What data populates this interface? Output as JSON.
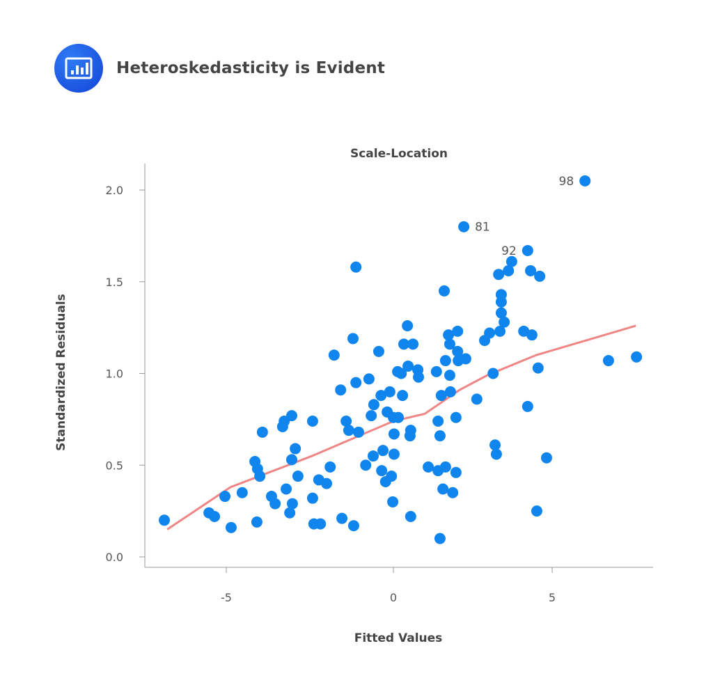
{
  "header": {
    "title": "Heteroskedasticity is Evident",
    "icon": "bar-chart-icon"
  },
  "chart_data": {
    "type": "scatter",
    "title": "Scale-Location",
    "xlabel": "Fitted Values",
    "ylabel": "Standardized Residuals",
    "xlim": [
      -7.5,
      8
    ],
    "ylim": [
      -0.05,
      2.15
    ],
    "xticks": [
      "-5",
      "0",
      "5"
    ],
    "xtick_values": [
      -5,
      0,
      5
    ],
    "yticks": [
      "0.0",
      "0.5",
      "1.0",
      "1.5",
      "2.0"
    ],
    "ytick_values": [
      0,
      0.5,
      1.0,
      1.5,
      2.0
    ],
    "grid": false,
    "point_color": "#1185ee",
    "line_color": "#f08585",
    "points": [
      [
        -7.03,
        0.2
      ],
      [
        -5.66,
        0.24
      ],
      [
        -5.49,
        0.22
      ],
      [
        -5.17,
        0.33
      ],
      [
        -4.98,
        0.16
      ],
      [
        -4.64,
        0.35
      ],
      [
        -4.25,
        0.52
      ],
      [
        -4.19,
        0.19
      ],
      [
        -4.17,
        0.48
      ],
      [
        -4.1,
        0.44
      ],
      [
        -4.02,
        0.68
      ],
      [
        -3.74,
        0.33
      ],
      [
        -3.63,
        0.29
      ],
      [
        -3.4,
        0.71
      ],
      [
        -3.35,
        0.74
      ],
      [
        -3.29,
        0.37
      ],
      [
        -3.18,
        0.24
      ],
      [
        -3.12,
        0.53
      ],
      [
        -3.12,
        0.77
      ],
      [
        -3.1,
        0.29
      ],
      [
        -3.01,
        0.59
      ],
      [
        -2.93,
        0.44
      ],
      [
        -2.48,
        0.74
      ],
      [
        -2.48,
        0.32
      ],
      [
        -2.44,
        0.18
      ],
      [
        -2.29,
        0.42
      ],
      [
        -2.24,
        0.18
      ],
      [
        -2.05,
        0.4
      ],
      [
        -1.94,
        0.49
      ],
      [
        -1.82,
        1.1
      ],
      [
        -1.62,
        0.91
      ],
      [
        -1.58,
        0.21
      ],
      [
        -1.45,
        0.74
      ],
      [
        -1.37,
        0.69
      ],
      [
        -1.22,
        0.17
      ],
      [
        -1.24,
        1.19
      ],
      [
        -1.15,
        0.95
      ],
      [
        -1.07,
        0.68
      ],
      [
        -1.15,
        1.58
      ],
      [
        -0.85,
        0.5
      ],
      [
        -0.75,
        0.97
      ],
      [
        -0.68,
        0.77
      ],
      [
        -0.62,
        0.55
      ],
      [
        -0.6,
        0.83
      ],
      [
        -0.45,
        1.12
      ],
      [
        -0.38,
        0.88
      ],
      [
        -0.36,
        0.47
      ],
      [
        -0.32,
        0.58
      ],
      [
        -0.24,
        0.41
      ],
      [
        -0.19,
        0.79
      ],
      [
        -0.11,
        0.9
      ],
      [
        -0.06,
        0.44
      ],
      [
        0.0,
        0.76
      ],
      [
        -0.02,
        0.3
      ],
      [
        0.02,
        0.56
      ],
      [
        0.02,
        0.67
      ],
      [
        0.15,
        0.76
      ],
      [
        0.13,
        1.01
      ],
      [
        0.24,
        1.0
      ],
      [
        0.28,
        0.88
      ],
      [
        0.32,
        1.16
      ],
      [
        0.43,
        1.26
      ],
      [
        0.45,
        1.04
      ],
      [
        0.53,
        0.22
      ],
      [
        0.53,
        0.69
      ],
      [
        0.51,
        0.66
      ],
      [
        0.6,
        1.16
      ],
      [
        0.75,
        1.02
      ],
      [
        0.77,
        0.98
      ],
      [
        1.07,
        0.49
      ],
      [
        1.32,
        1.01
      ],
      [
        1.37,
        0.74
      ],
      [
        1.37,
        0.47
      ],
      [
        1.43,
        0.1
      ],
      [
        1.43,
        0.66
      ],
      [
        1.47,
        0.88
      ],
      [
        1.52,
        0.37
      ],
      [
        1.56,
        1.45
      ],
      [
        1.6,
        1.07
      ],
      [
        1.6,
        0.49
      ],
      [
        1.69,
        1.21
      ],
      [
        1.73,
        0.99
      ],
      [
        1.73,
        1.16
      ],
      [
        1.75,
        0.9
      ],
      [
        1.82,
        0.35
      ],
      [
        1.92,
        0.46
      ],
      [
        1.92,
        0.76
      ],
      [
        1.97,
        1.23
      ],
      [
        1.97,
        1.12
      ],
      [
        1.99,
        1.07
      ],
      [
        2.22,
        1.08
      ],
      [
        2.16,
        1.8
      ],
      [
        2.56,
        0.86
      ],
      [
        2.8,
        1.18
      ],
      [
        2.95,
        1.22
      ],
      [
        3.06,
        1.0
      ],
      [
        3.12,
        0.61
      ],
      [
        3.16,
        0.56
      ],
      [
        3.23,
        1.54
      ],
      [
        3.27,
        1.23
      ],
      [
        3.31,
        1.43
      ],
      [
        3.31,
        1.39
      ],
      [
        3.31,
        1.33
      ],
      [
        3.4,
        1.28
      ],
      [
        3.53,
        1.56
      ],
      [
        3.63,
        1.61
      ],
      [
        4.0,
        1.23
      ],
      [
        4.12,
        1.67
      ],
      [
        4.12,
        0.82
      ],
      [
        4.21,
        1.56
      ],
      [
        4.25,
        1.21
      ],
      [
        4.4,
        0.25
      ],
      [
        4.44,
        1.03
      ],
      [
        4.49,
        1.53
      ],
      [
        4.7,
        0.54
      ],
      [
        5.88,
        2.05
      ],
      [
        6.6,
        1.07
      ],
      [
        7.46,
        1.09
      ]
    ],
    "labeled_points": [
      {
        "label": "98",
        "x": 5.88,
        "y": 2.05
      },
      {
        "label": "81",
        "x": 2.16,
        "y": 1.8
      },
      {
        "label": "92",
        "x": 4.12,
        "y": 1.67
      }
    ],
    "trend_line": [
      [
        -6.94,
        0.15
      ],
      [
        -5.0,
        0.38
      ],
      [
        -2.5,
        0.55
      ],
      [
        0.0,
        0.74
      ],
      [
        0.96,
        0.78
      ],
      [
        2.03,
        0.91
      ],
      [
        2.88,
        0.99
      ],
      [
        4.38,
        1.1
      ],
      [
        7.44,
        1.26
      ]
    ]
  }
}
